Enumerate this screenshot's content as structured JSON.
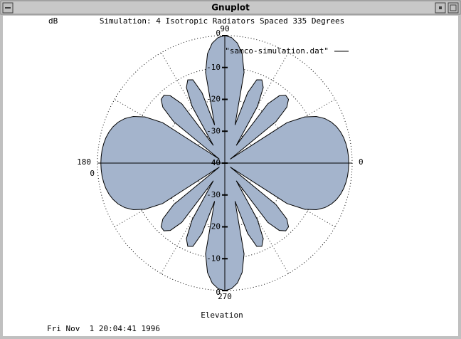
{
  "window": {
    "title": "Gnuplot"
  },
  "chart_data": {
    "type": "polar",
    "title": "Simulation: 4 Isotropic Radiators Spaced 335 Degrees",
    "r_label": "dB",
    "xlabel": "Elevation",
    "timestamp": "Fri Nov  1 20:04:41 1996",
    "rlim": [
      -40,
      0
    ],
    "rticks": [
      0,
      -10,
      -20,
      -30,
      -40
    ],
    "angle_ticks": [
      0,
      90,
      180,
      270
    ],
    "grid": true,
    "series": [
      {
        "name": "\"samco-simulation.dat\"",
        "color": "#a4b4cc",
        "theta": [
          0,
          3,
          6,
          9,
          12,
          15,
          18,
          21,
          24,
          27,
          30,
          33,
          36,
          39,
          42,
          45,
          48,
          51,
          54,
          57,
          60,
          63,
          66,
          69,
          72,
          75,
          78,
          81,
          84,
          87,
          90,
          93,
          96,
          99,
          102,
          105,
          108,
          111,
          114,
          117,
          120,
          123,
          126,
          129,
          132,
          135,
          138,
          141,
          144,
          147,
          150,
          153,
          156,
          159,
          162,
          165,
          168,
          171,
          174,
          177,
          180,
          183,
          186,
          189,
          192,
          195,
          198,
          201,
          204,
          207,
          210,
          213,
          216,
          219,
          222,
          225,
          228,
          231,
          234,
          237,
          240,
          243,
          246,
          249,
          252,
          255,
          258,
          261,
          264,
          267,
          270,
          273,
          276,
          279,
          282,
          285,
          288,
          291,
          294,
          297,
          300,
          303,
          306,
          309,
          312,
          315,
          318,
          321,
          324,
          327,
          330,
          333,
          336,
          339,
          342,
          345,
          348,
          351,
          354,
          357
        ],
        "values": [
          -1.06,
          -1.11,
          -1.23,
          -1.46,
          -1.81,
          -2.34,
          -3.08,
          -4.13,
          -5.61,
          -7.75,
          -11,
          -16.7,
          -37.9,
          -19.3,
          -13.8,
          -11.7,
          -11.4,
          -12.8,
          -17,
          -33.4,
          -19.5,
          -13.4,
          -11.4,
          -12,
          -16.8,
          -27.6,
          -10.9,
          -5.23,
          -2.15,
          -0.52,
          0,
          -0.52,
          -2.15,
          -5.23,
          -10.9,
          -27.6,
          -16.8,
          -12,
          -11.4,
          -13.4,
          -19.5,
          -33.4,
          -17,
          -12.8,
          -11.4,
          -11.7,
          -13.8,
          -19.3,
          -37.9,
          -16.7,
          -11,
          -7.75,
          -5.61,
          -4.13,
          -3.08,
          -2.34,
          -1.81,
          -1.46,
          -1.23,
          -1.11,
          -1.06,
          -1.11,
          -1.23,
          -1.46,
          -1.81,
          -2.34,
          -3.08,
          -4.13,
          -5.61,
          -7.75,
          -11,
          -16.7,
          -37.9,
          -19.3,
          -13.8,
          -11.7,
          -11.4,
          -12.8,
          -17,
          -33.4,
          -19.5,
          -13.4,
          -11.4,
          -12,
          -16.8,
          -27.6,
          -10.9,
          -5.23,
          -2.15,
          -0.52,
          0,
          -0.52,
          -2.15,
          -5.23,
          -10.9,
          -27.6,
          -16.8,
          -12,
          -11.4,
          -13.4,
          -19.5,
          -33.4,
          -17,
          -12.8,
          -11.4,
          -11.7,
          -13.8,
          -19.3,
          -37.9,
          -16.7,
          -11,
          -7.75,
          -5.61,
          -4.13,
          -3.08,
          -2.34,
          -1.81,
          -1.46,
          -1.23,
          -1.11
        ]
      }
    ]
  }
}
